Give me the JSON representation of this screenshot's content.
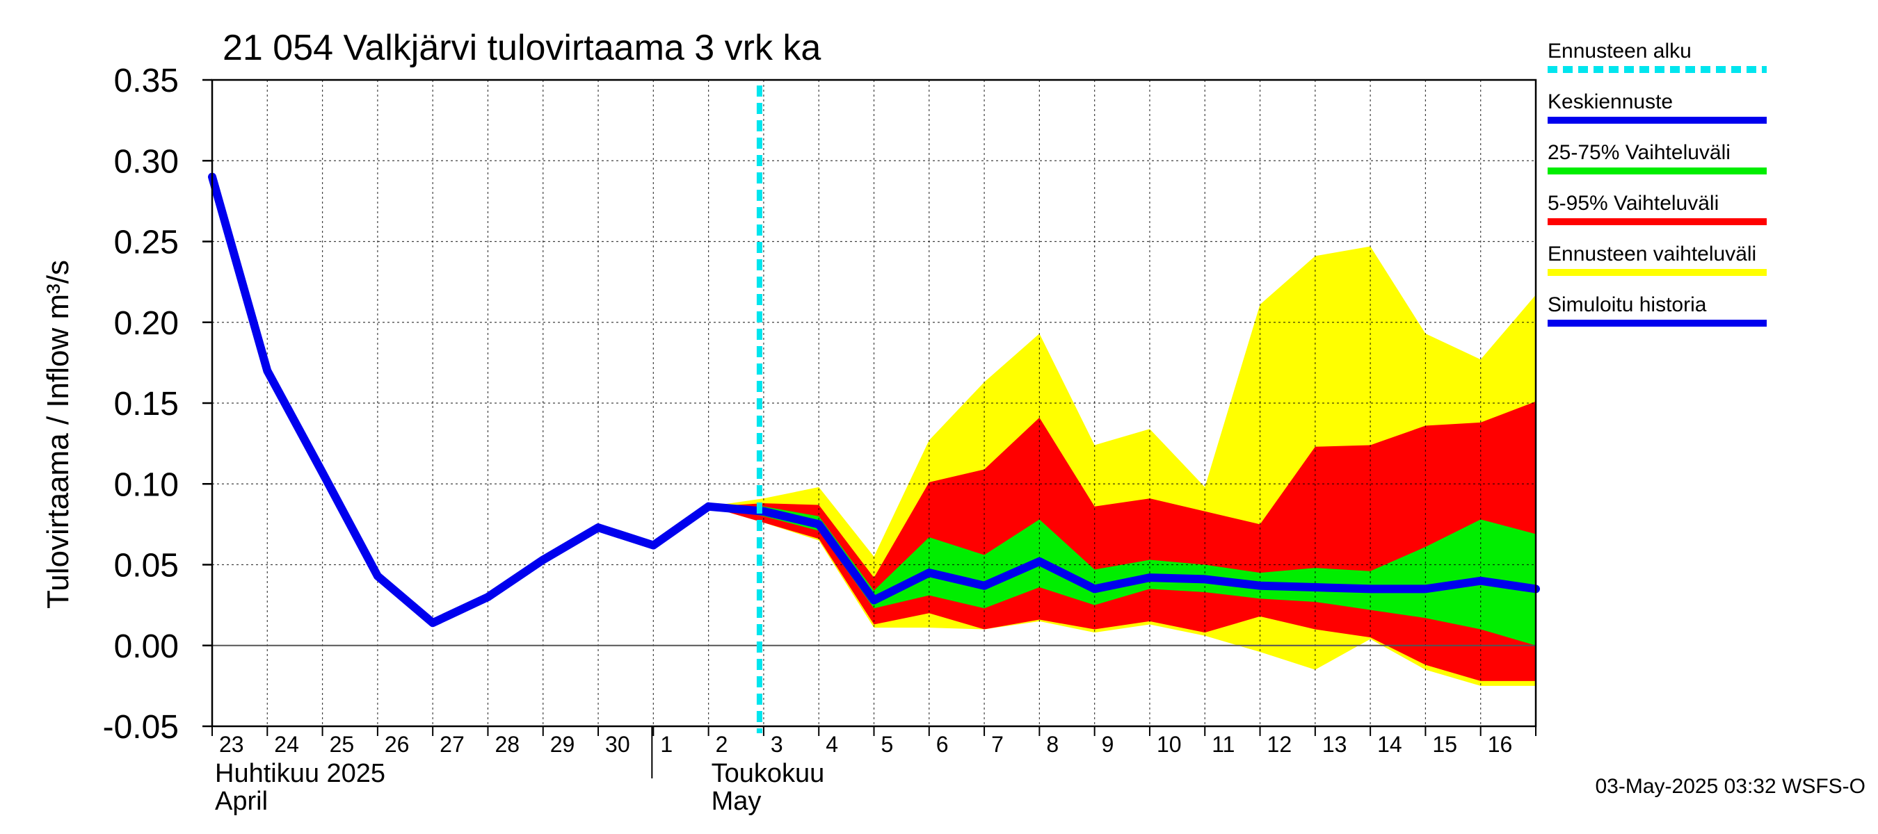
{
  "chart_data": {
    "type": "line",
    "title": "21 054 Valkjärvi tulovirtaama 3 vrk ka",
    "ylabel": "Tulovirtaama / Inflow    m³/s",
    "ylim": [
      -0.05,
      0.35
    ],
    "yticks": [
      -0.05,
      0.0,
      0.05,
      0.1,
      0.15,
      0.2,
      0.25,
      0.3,
      0.35
    ],
    "ytick_labels": [
      "-0.05",
      "0.00",
      "0.05",
      "0.10",
      "0.15",
      "0.20",
      "0.25",
      "0.30",
      "0.35"
    ],
    "x_day_index_range": [
      0,
      24
    ],
    "x_tick_labels": [
      "23",
      "24",
      "25",
      "26",
      "27",
      "28",
      "29",
      "30",
      "1",
      "2",
      "3",
      "4",
      "5",
      "6",
      "7",
      "8",
      "9",
      "10",
      "11",
      "12",
      "13",
      "14",
      "15",
      "16"
    ],
    "month_labels": [
      {
        "fi": "Huhtikuu  2025",
        "en": "April",
        "day_index": 0
      },
      {
        "fi": "Toukokuu",
        "en": "May",
        "day_index": 9
      }
    ],
    "month_separator_day_index": 8,
    "forecast_start_day_index": 10,
    "x_day_index": [
      0,
      1,
      2,
      3,
      4,
      5,
      6,
      7,
      8,
      9,
      10,
      11,
      12,
      13,
      14,
      15,
      16,
      17,
      18,
      19,
      20,
      21,
      22,
      23,
      24
    ],
    "series": [
      {
        "name": "Simuloitu historia",
        "color": "#0000ee",
        "x": [
          0,
          1,
          2,
          3,
          4,
          5,
          6,
          7,
          8,
          9
        ],
        "values": [
          0.29,
          0.17,
          0.107,
          0.043,
          0.014,
          0.03,
          0.053,
          0.073,
          0.062,
          0.086
        ]
      },
      {
        "name": "Keskiennuste",
        "color": "#0000ee",
        "x": [
          9,
          10,
          11,
          12,
          13,
          14,
          15,
          16,
          17,
          18,
          19,
          20,
          21,
          22,
          23,
          24
        ],
        "values": [
          0.086,
          0.083,
          0.075,
          0.028,
          0.045,
          0.037,
          0.052,
          0.035,
          0.042,
          0.041,
          0.037,
          0.036,
          0.035,
          0.035,
          0.04,
          0.035
        ]
      }
    ],
    "bands": [
      {
        "name": "Ennusteen vaihteluväli",
        "color": "#ffff00",
        "x": [
          9,
          10,
          11,
          12,
          13,
          14,
          15,
          16,
          17,
          18,
          19,
          20,
          21,
          22,
          23,
          24
        ],
        "upper": [
          0.086,
          0.091,
          0.098,
          0.055,
          0.127,
          0.163,
          0.193,
          0.124,
          0.134,
          0.098,
          0.211,
          0.241,
          0.247,
          0.193,
          0.177,
          0.217
        ],
        "lower": [
          0.086,
          0.076,
          0.065,
          0.011,
          0.011,
          0.01,
          0.015,
          0.008,
          0.013,
          0.006,
          -0.004,
          -0.015,
          0.004,
          -0.015,
          -0.025,
          -0.025
        ]
      },
      {
        "name": "5-95% Vaihteluväli",
        "color": "#ff0000",
        "x": [
          9,
          10,
          11,
          12,
          13,
          14,
          15,
          16,
          17,
          18,
          19,
          20,
          21,
          22,
          23,
          24
        ],
        "upper": [
          0.086,
          0.088,
          0.087,
          0.042,
          0.101,
          0.109,
          0.141,
          0.086,
          0.091,
          0.083,
          0.075,
          0.123,
          0.124,
          0.136,
          0.138,
          0.151
        ],
        "lower": [
          0.086,
          0.076,
          0.066,
          0.013,
          0.02,
          0.01,
          0.016,
          0.01,
          0.015,
          0.008,
          0.018,
          0.01,
          0.005,
          -0.012,
          -0.022,
          -0.022
        ]
      },
      {
        "name": "25-75% Vaihteluväli",
        "color": "#00ee00",
        "x": [
          9,
          10,
          11,
          12,
          13,
          14,
          15,
          16,
          17,
          18,
          19,
          20,
          21,
          22,
          23,
          24
        ],
        "upper": [
          0.086,
          0.086,
          0.08,
          0.034,
          0.067,
          0.056,
          0.078,
          0.047,
          0.053,
          0.05,
          0.045,
          0.048,
          0.046,
          0.061,
          0.078,
          0.069
        ],
        "lower": [
          0.086,
          0.08,
          0.071,
          0.023,
          0.031,
          0.023,
          0.036,
          0.025,
          0.035,
          0.033,
          0.029,
          0.027,
          0.022,
          0.017,
          0.01,
          0.0
        ]
      }
    ],
    "legend": [
      {
        "label": "Ennusteen alku",
        "color": "#00e5ee",
        "style": "dashed"
      },
      {
        "label": "Keskiennuste",
        "color": "#0000ee",
        "style": "solid"
      },
      {
        "label": "25-75% Vaihteluväli",
        "color": "#00ee00",
        "style": "solid"
      },
      {
        "label": "5-95% Vaihteluväli",
        "color": "#ff0000",
        "style": "solid"
      },
      {
        "label": "Ennusteen vaihteluväli",
        "color": "#ffff00",
        "style": "solid"
      },
      {
        "label": "Simuloitu historia",
        "color": "#0000ee",
        "style": "solid"
      }
    ],
    "legend_position": "right",
    "grid": true,
    "footer": "03-May-2025 03:32 WSFS-O"
  }
}
